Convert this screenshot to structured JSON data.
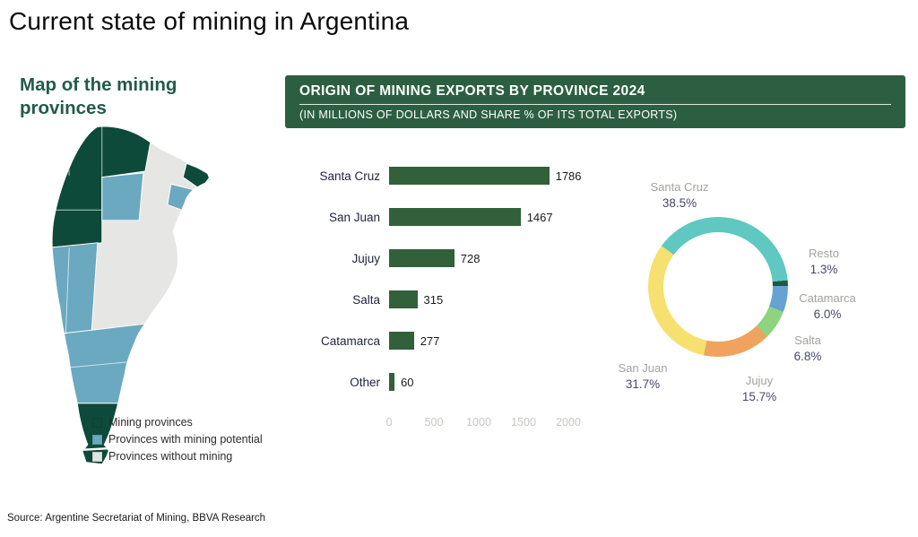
{
  "page": {
    "title": "Current state of mining in Argentina",
    "source": "Source: Argentine Secretariat of Mining, BBVA Research"
  },
  "map": {
    "title": "Map of the mining provinces",
    "legend": [
      {
        "label": "Mining provinces",
        "color": "#0e4a39"
      },
      {
        "label": "Provinces with mining potential",
        "color": "#6aa9c0"
      },
      {
        "label": "Provinces without mining",
        "color": "#e4e4e2"
      }
    ]
  },
  "chart_data": [
    {
      "type": "bar",
      "orientation": "horizontal",
      "title": "ORIGIN OF MINING EXPORTS BY PROVINCE 2024",
      "subtitle": "(IN MILLIONS OF DOLLARS AND SHARE % OF ITS TOTAL EXPORTS)",
      "categories": [
        "Santa Cruz",
        "San Juan",
        "Jujuy",
        "Salta",
        "Catamarca",
        "Other"
      ],
      "values": [
        1786,
        1467,
        728,
        315,
        277,
        60
      ],
      "xlim": [
        0,
        2000
      ],
      "xticks": [
        0,
        500,
        1000,
        1500,
        2000
      ],
      "bar_color": "#32603a",
      "grid": false,
      "legend_position": "none"
    },
    {
      "type": "pie",
      "donut": true,
      "start_angle_deg": -54,
      "slices": [
        {
          "label": "Santa Cruz",
          "value": 38.5,
          "pct_label": "38.5%",
          "color": "#5fc8c0"
        },
        {
          "label": "Resto",
          "value": 1.3,
          "pct_label": "1.3%",
          "color": "#1a5a46"
        },
        {
          "label": "Catamarca",
          "value": 6.0,
          "pct_label": "6.0%",
          "color": "#66a3d2"
        },
        {
          "label": "Salta",
          "value": 6.8,
          "pct_label": "6.8%",
          "color": "#8ed47e"
        },
        {
          "label": "Jujuy",
          "value": 15.7,
          "pct_label": "15.7%",
          "color": "#f0a35e"
        },
        {
          "label": "San Juan",
          "value": 31.7,
          "pct_label": "31.7%",
          "color": "#f6e070"
        }
      ]
    }
  ]
}
